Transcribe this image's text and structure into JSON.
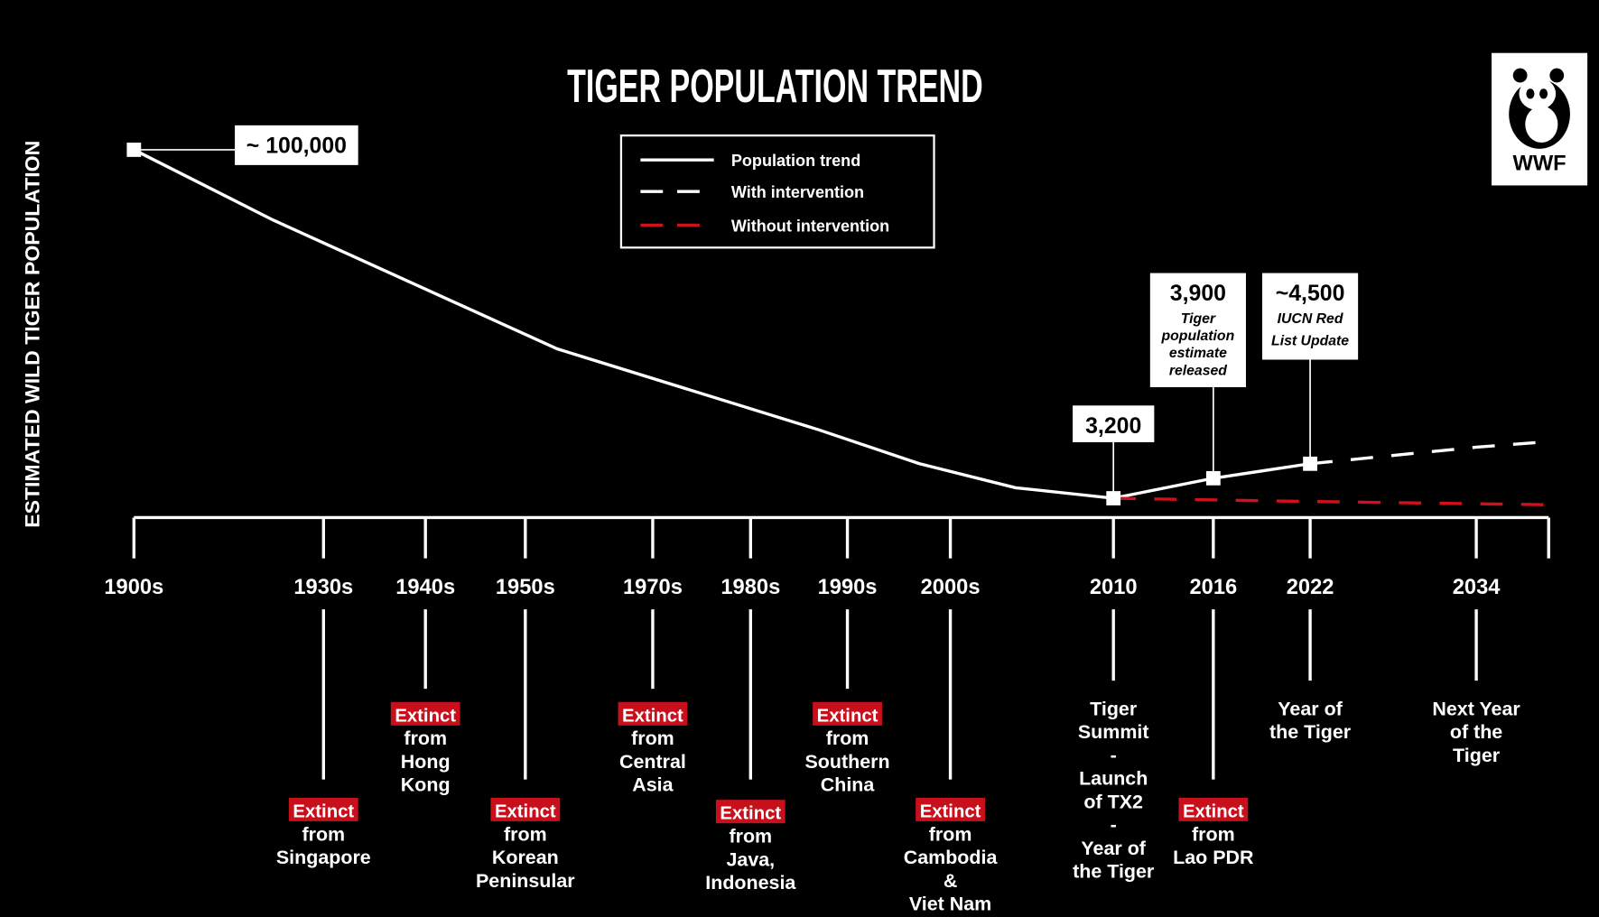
{
  "chart_data": {
    "type": "line",
    "title": "TIGER POPULATION TREND",
    "ylabel": "ESTIMATED WILD TIGER POPULATION",
    "xlabel": "",
    "yscale": "log",
    "legend": {
      "placement": "top-center",
      "entries": [
        {
          "label": "Population trend",
          "style": "solid",
          "color": "#ffffff"
        },
        {
          "label": "With intervention",
          "style": "dashed",
          "color": "#ffffff"
        },
        {
          "label": "Without intervention",
          "style": "dashed",
          "color": "#d0101a"
        }
      ]
    },
    "ticks": [
      {
        "label": "1900s",
        "year": 1900
      },
      {
        "label": "1930s",
        "year": 1930
      },
      {
        "label": "1940s",
        "year": 1940
      },
      {
        "label": "1950s",
        "year": 1950
      },
      {
        "label": "1970s",
        "year": 1970
      },
      {
        "label": "1980s",
        "year": 1980
      },
      {
        "label": "1990s",
        "year": 1990
      },
      {
        "label": "2000s",
        "year": 2000
      },
      {
        "label": "2010",
        "year": 2010
      },
      {
        "label": "2016",
        "year": 2016
      },
      {
        "label": "2022",
        "year": 2022
      },
      {
        "label": "2034",
        "year": 2034
      },
      {
        "label": "",
        "year": 2040
      }
    ],
    "series": [
      {
        "name": "Population trend",
        "points": [
          [
            1900,
            100000
          ],
          [
            1922,
            50000
          ],
          [
            1955,
            14000
          ],
          [
            1987,
            6300
          ],
          [
            1997,
            4500
          ],
          [
            2004,
            3550
          ],
          [
            2010,
            3200
          ],
          [
            2014,
            3650
          ],
          [
            2016,
            3900
          ],
          [
            2022,
            4500
          ]
        ]
      },
      {
        "name": "With intervention",
        "points": [
          [
            2022,
            4500
          ],
          [
            2034,
            5300
          ],
          [
            2040,
            5600
          ]
        ]
      },
      {
        "name": "Without intervention",
        "points": [
          [
            2010,
            3200
          ],
          [
            2022,
            3100
          ],
          [
            2040,
            3000
          ]
        ]
      }
    ],
    "annotations": [
      {
        "year": 1900,
        "value": 100000,
        "label": "~ 100,000",
        "sub": []
      },
      {
        "year": 2010,
        "value": 3200,
        "label": "3,200",
        "sub": []
      },
      {
        "year": 2016,
        "value": 3900,
        "label": "3,900",
        "sub": [
          "Tiger",
          "population",
          "estimate",
          "released"
        ]
      },
      {
        "year": 2022,
        "value": 4500,
        "label": "~4,500",
        "sub": [
          "IUCN Red",
          "List Update"
        ]
      }
    ],
    "events": [
      {
        "tick": 1,
        "level": "low",
        "badge": "Extinct",
        "lines": [
          "from",
          "Singapore"
        ]
      },
      {
        "tick": 2,
        "level": "high",
        "badge": "Extinct",
        "lines": [
          "from",
          "Hong",
          "Kong"
        ]
      },
      {
        "tick": 3,
        "level": "low",
        "badge": "Extinct",
        "lines": [
          "from",
          "Korean",
          "Peninsular"
        ]
      },
      {
        "tick": 4,
        "level": "high",
        "badge": "Extinct",
        "lines": [
          "from",
          "Central",
          "Asia"
        ]
      },
      {
        "tick": 5,
        "level": "low",
        "badge": "Extinct",
        "lines": [
          "from",
          "Java,",
          "Indonesia"
        ]
      },
      {
        "tick": 6,
        "level": "high",
        "badge": "Extinct",
        "lines": [
          "from",
          "Southern",
          "China"
        ]
      },
      {
        "tick": 7,
        "level": "low",
        "badge": "Extinct",
        "lines": [
          "from",
          "Cambodia",
          "&",
          "Viet Nam"
        ]
      },
      {
        "tick": 8,
        "level": "text",
        "badge": "",
        "lines": [
          "Tiger",
          "Summit",
          "-",
          "Launch",
          "of TX2",
          "-",
          "Year of",
          "the Tiger"
        ]
      },
      {
        "tick": 9,
        "level": "low",
        "badge": "Extinct",
        "lines": [
          "from",
          "Lao PDR"
        ]
      },
      {
        "tick": 10,
        "level": "text",
        "badge": "",
        "lines": [
          "Year of",
          "the Tiger"
        ]
      },
      {
        "tick": 11,
        "level": "text",
        "badge": "",
        "lines": [
          "Next Year",
          "of the",
          "Tiger"
        ]
      }
    ]
  },
  "logo": {
    "text": "WWF"
  },
  "colors": {
    "background": "#000000",
    "line": "#ffffff",
    "extinct": "#c8101c",
    "without": "#d0101a"
  }
}
